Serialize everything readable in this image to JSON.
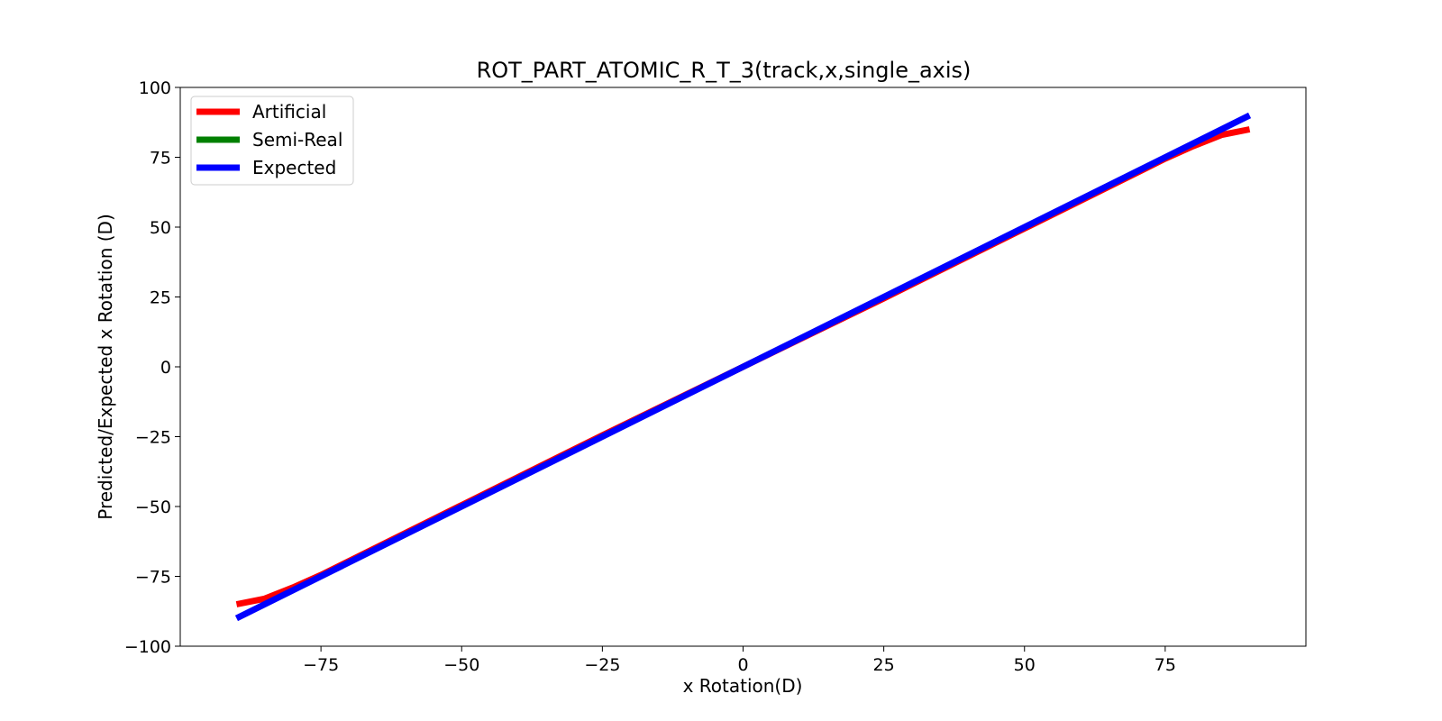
{
  "chart_data": {
    "type": "line",
    "title": "ROT_PART_ATOMIC_R_T_3(track,x,single_axis)",
    "xlabel": "x Rotation(D)",
    "ylabel": "Predicted/Expected x Rotation (D)",
    "xlim": [
      -100,
      100
    ],
    "ylim": [
      -100,
      100
    ],
    "xticks": [
      -75,
      -50,
      -25,
      0,
      25,
      50,
      75
    ],
    "yticks": [
      -100,
      -75,
      -50,
      -25,
      0,
      25,
      50,
      75,
      100
    ],
    "xtick_labels": [
      "−75",
      "−50",
      "−25",
      "0",
      "25",
      "50",
      "75"
    ],
    "ytick_labels": [
      "−100",
      "−75",
      "−50",
      "−25",
      "0",
      "25",
      "50",
      "75",
      "100"
    ],
    "grid": false,
    "legend_position": "top-left",
    "series": [
      {
        "name": "Artificial",
        "color": "#ff0000",
        "x": [
          -90,
          -85,
          -80,
          -75,
          -50,
          -25,
          0,
          25,
          50,
          75,
          80,
          85,
          90
        ],
        "y": [
          -85,
          -83,
          -79,
          -74.5,
          -49.5,
          -24.5,
          0,
          24.5,
          49.5,
          74.5,
          79,
          83,
          85
        ]
      },
      {
        "name": "Semi-Real",
        "color": "#008000",
        "x": [],
        "y": []
      },
      {
        "name": "Expected",
        "color": "#0000ff",
        "x": [
          -90,
          90
        ],
        "y": [
          -90,
          90
        ]
      }
    ]
  }
}
